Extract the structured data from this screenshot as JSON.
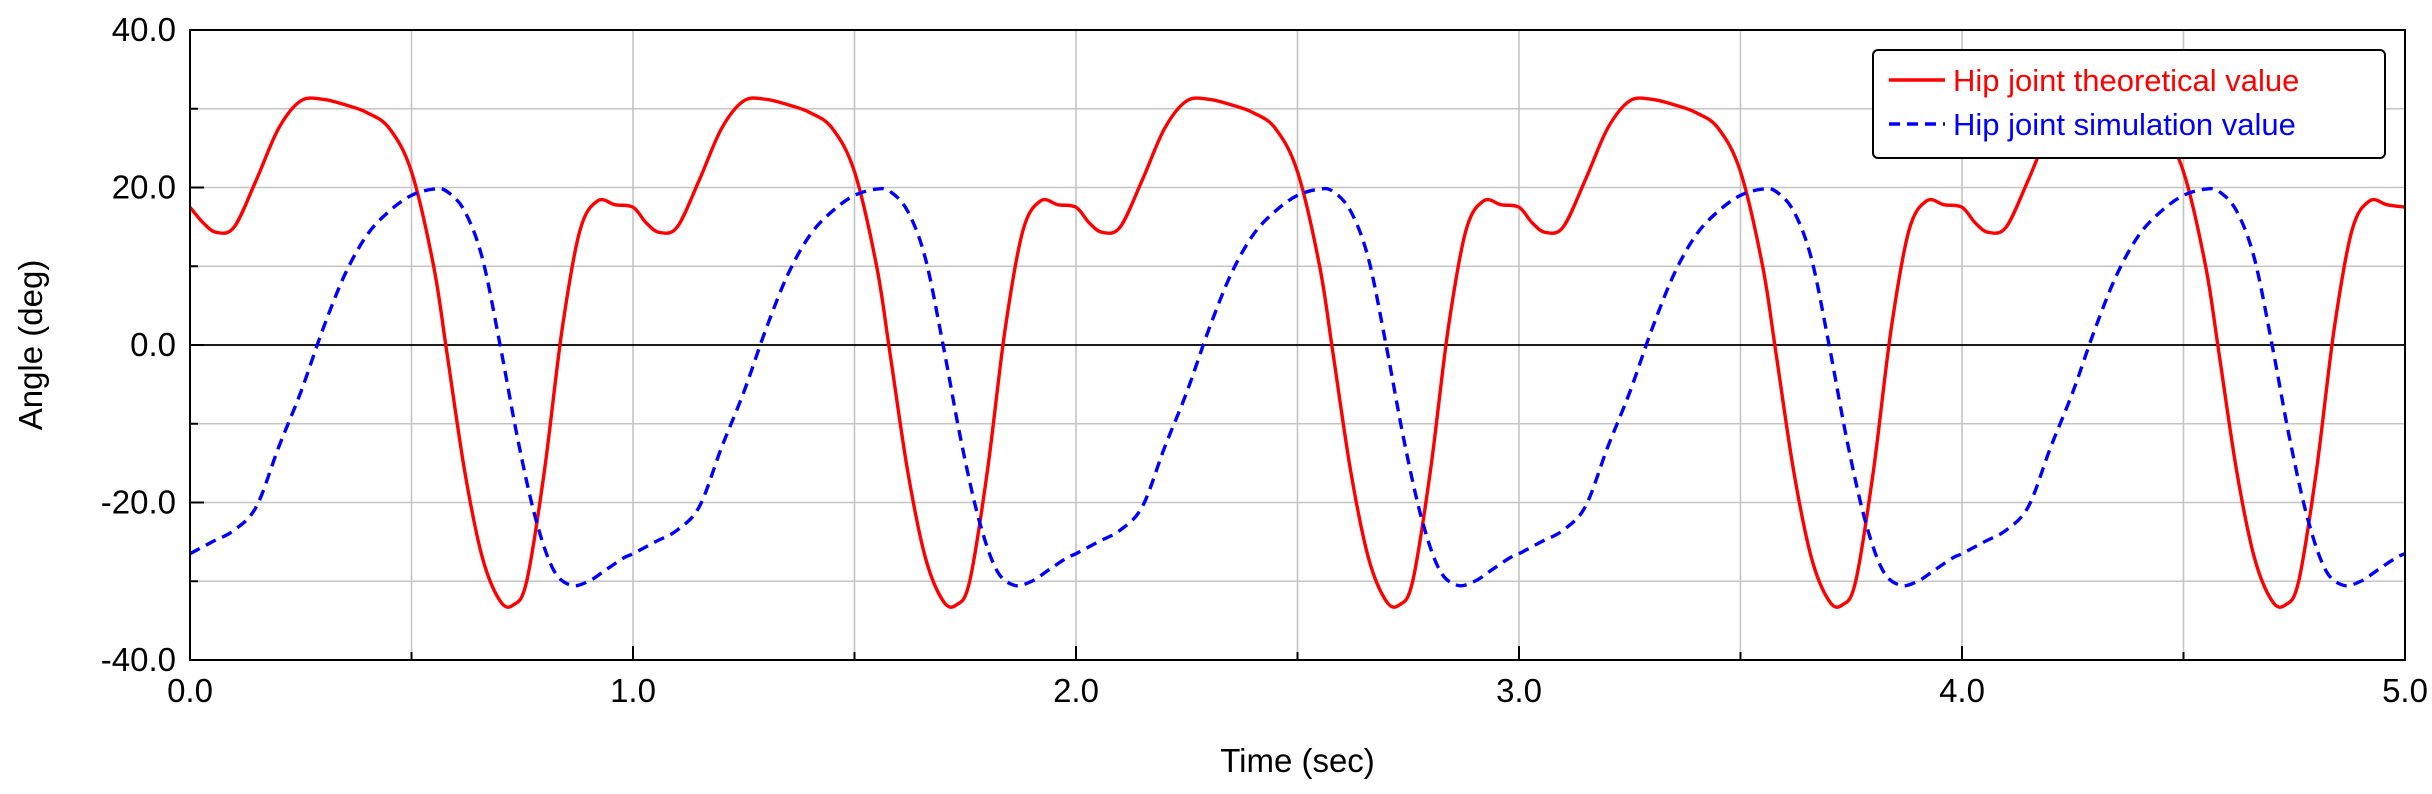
{
  "chart_data": {
    "type": "line",
    "title": "",
    "xlabel": "Time (sec)",
    "ylabel": "Angle (deg)",
    "xlim": [
      0,
      5
    ],
    "ylim": [
      -40,
      40
    ],
    "x_major_ticks": [
      0,
      1,
      2,
      3,
      4,
      5
    ],
    "x_tick_labels": [
      "0.0",
      "1.0",
      "2.0",
      "3.0",
      "4.0",
      "5.0"
    ],
    "x_minor_ticks": [
      0.5,
      1.5,
      2.5,
      3.5,
      4.5
    ],
    "y_major_ticks": [
      -40,
      -20,
      0,
      20,
      40
    ],
    "y_tick_labels": [
      "-40.0",
      "-20.0",
      "0.0",
      "20.0",
      "40.0"
    ],
    "y_minor_ticks": [
      -30,
      -10,
      10,
      30
    ],
    "grid": true,
    "zero_line": true,
    "legend_position": "top-right",
    "period": 1.0,
    "series": [
      {
        "name": "Hip joint theoretical value",
        "color": "#ff0000",
        "style": "solid",
        "cycle_x": [
          0.0,
          0.03,
          0.06,
          0.1,
          0.15,
          0.2,
          0.25,
          0.3,
          0.35,
          0.4,
          0.45,
          0.5,
          0.55,
          0.58,
          0.62,
          0.66,
          0.7,
          0.73,
          0.76,
          0.8,
          0.84,
          0.88,
          0.92,
          0.96,
          1.0
        ],
        "cycle_y": [
          17.5,
          15.5,
          14.3,
          15.0,
          21.0,
          27.5,
          31.0,
          31.2,
          30.5,
          29.5,
          27.5,
          22.0,
          10.0,
          -1.0,
          -16.0,
          -27.0,
          -32.5,
          -33.0,
          -30.0,
          -16.0,
          2.0,
          14.5,
          18.3,
          17.8,
          17.5
        ]
      },
      {
        "name": "Hip joint simulation value",
        "color": "#0000ff",
        "style": "dashed",
        "cycle_x": [
          0.0,
          0.05,
          0.1,
          0.15,
          0.2,
          0.25,
          0.3,
          0.35,
          0.4,
          0.45,
          0.5,
          0.55,
          0.58,
          0.62,
          0.66,
          0.7,
          0.74,
          0.78,
          0.82,
          0.86,
          0.9,
          0.94,
          0.98,
          1.0
        ],
        "cycle_y": [
          -26.5,
          -25.0,
          -23.5,
          -20.5,
          -13.0,
          -6.0,
          2.0,
          9.0,
          14.0,
          17.0,
          19.0,
          19.8,
          19.5,
          17.0,
          11.0,
          0.0,
          -12.0,
          -22.0,
          -28.5,
          -30.5,
          -30.0,
          -28.5,
          -27.0,
          -26.5
        ]
      }
    ]
  }
}
